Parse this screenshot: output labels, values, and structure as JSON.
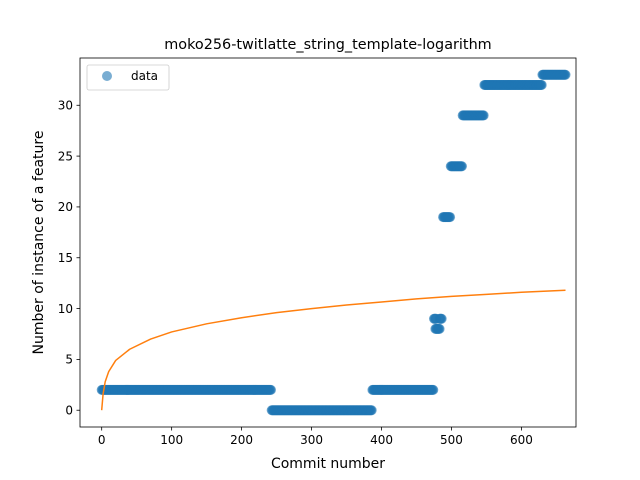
{
  "chart_data": {
    "type": "scatter",
    "title": "moko256-twitlatte_string_template-logarithm",
    "xlabel": "Commit number",
    "ylabel": "Number of instance of a feature",
    "xlim": [
      -31,
      678
    ],
    "ylim": [
      -1.65,
      34.65
    ],
    "xticks": [
      0,
      100,
      200,
      300,
      400,
      500,
      600
    ],
    "yticks": [
      0,
      5,
      10,
      15,
      20,
      25,
      30
    ],
    "grid": false,
    "legend": {
      "position": "top-left",
      "entries": [
        "data"
      ]
    },
    "colors": {
      "data": "#1f77b4",
      "fit": "#ff7f0e"
    },
    "series": [
      {
        "name": "data",
        "kind": "scatter",
        "segments": [
          {
            "x_start": 0,
            "x_end": 242,
            "y": 2
          },
          {
            "x_start": 243,
            "x_end": 386,
            "y": 0
          },
          {
            "x_start": 387,
            "x_end": 474,
            "y": 2
          },
          {
            "x_start": 475,
            "x_end": 478,
            "y": 9
          },
          {
            "x_start": 477,
            "x_end": 483,
            "y": 8
          },
          {
            "x_start": 483,
            "x_end": 486,
            "y": 9
          },
          {
            "x_start": 488,
            "x_end": 498,
            "y": 19
          },
          {
            "x_start": 499,
            "x_end": 515,
            "y": 24
          },
          {
            "x_start": 516,
            "x_end": 546,
            "y": 29
          },
          {
            "x_start": 547,
            "x_end": 629,
            "y": 32
          },
          {
            "x_start": 630,
            "x_end": 663,
            "y": 33
          }
        ]
      },
      {
        "kind": "line",
        "model": "logarithmic",
        "points": [
          [
            0,
            0
          ],
          [
            2,
            1.6
          ],
          [
            5,
            2.8
          ],
          [
            10,
            3.8
          ],
          [
            20,
            4.9
          ],
          [
            40,
            6.0
          ],
          [
            70,
            7.0
          ],
          [
            100,
            7.7
          ],
          [
            150,
            8.5
          ],
          [
            200,
            9.1
          ],
          [
            250,
            9.6
          ],
          [
            300,
            10.0
          ],
          [
            350,
            10.35
          ],
          [
            400,
            10.65
          ],
          [
            450,
            10.95
          ],
          [
            500,
            11.2
          ],
          [
            550,
            11.4
          ],
          [
            600,
            11.6
          ],
          [
            663,
            11.8
          ]
        ]
      }
    ]
  }
}
